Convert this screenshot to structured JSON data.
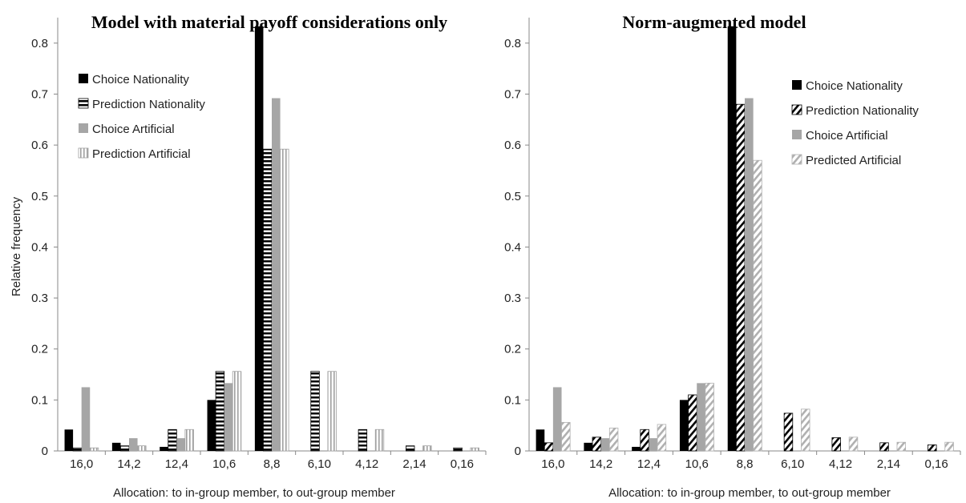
{
  "chart_data": [
    {
      "type": "bar",
      "title": "Model with material payoff considerations only",
      "xlabel": "Allocation: to in-group member, to out-group member",
      "ylabel": "Relative frequency",
      "ylim": [
        0,
        0.85
      ],
      "yticks": [
        "0",
        "0.1",
        "0.2",
        "0.3",
        "0.4",
        "0.5",
        "0.6",
        "0.7",
        "0.8"
      ],
      "categories": [
        "16,0",
        "14,2",
        "12,4",
        "10,6",
        "8,8",
        "6,10",
        "4,12",
        "2,14",
        "0,16"
      ],
      "legend_position": "top-left",
      "series": [
        {
          "name": "Choice Nationality",
          "pattern": "solid-black",
          "values": [
            0.042,
            0.016,
            0.008,
            0.1,
            0.833,
            0,
            0,
            0,
            0
          ]
        },
        {
          "name": "Prediction Nationality",
          "pattern": "horizontal-stripes",
          "values": [
            0.006,
            0.01,
            0.042,
            0.156,
            0.592,
            0.156,
            0.042,
            0.01,
            0.006
          ]
        },
        {
          "name": "Choice Artificial",
          "pattern": "solid-gray",
          "values": [
            0.125,
            0.025,
            0.025,
            0.133,
            0.692,
            0,
            0,
            0,
            0
          ]
        },
        {
          "name": "Prediction Artificial",
          "pattern": "vertical-stripes",
          "values": [
            0.006,
            0.01,
            0.042,
            0.156,
            0.592,
            0.156,
            0.042,
            0.01,
            0.006
          ]
        }
      ]
    },
    {
      "type": "bar",
      "title": "Norm-augmented model",
      "xlabel": "Allocation: to in-group member, to out-group member",
      "ylabel": "",
      "ylim": [
        0,
        0.85
      ],
      "yticks": [
        "0",
        "0.1",
        "0.2",
        "0.3",
        "0.4",
        "0.5",
        "0.6",
        "0.7",
        "0.8"
      ],
      "categories": [
        "16,0",
        "14,2",
        "12,4",
        "10,6",
        "8,8",
        "6,10",
        "4,12",
        "2,14",
        "0,16"
      ],
      "legend_position": "top-right",
      "series": [
        {
          "name": "Choice Nationality",
          "pattern": "solid-black",
          "values": [
            0.042,
            0.016,
            0.008,
            0.1,
            0.833,
            0,
            0,
            0,
            0
          ]
        },
        {
          "name": "Prediction Nationality",
          "pattern": "diagonal-black",
          "values": [
            0.016,
            0.027,
            0.042,
            0.11,
            0.68,
            0.074,
            0.026,
            0.016,
            0.012
          ]
        },
        {
          "name": "Choice Artificial",
          "pattern": "solid-gray",
          "values": [
            0.125,
            0.025,
            0.025,
            0.133,
            0.692,
            0,
            0,
            0,
            0
          ]
        },
        {
          "name": "Predicted Artificial",
          "pattern": "diagonal-gray",
          "values": [
            0.056,
            0.045,
            0.052,
            0.133,
            0.57,
            0.082,
            0.027,
            0.017,
            0.017
          ]
        }
      ]
    }
  ]
}
